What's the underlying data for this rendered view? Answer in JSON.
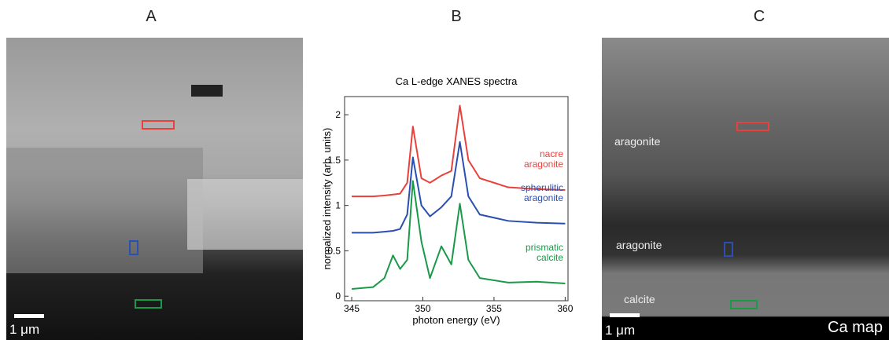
{
  "panels": {
    "a": {
      "label": "A",
      "scale": "1 μm"
    },
    "c": {
      "label": "C",
      "regions": [
        "aragonite",
        "aragonite",
        "calcite"
      ],
      "scale": "1 μm",
      "caption": "Ca map"
    }
  },
  "chart_data": {
    "type": "line",
    "panel": "B",
    "title": "Ca L-edge XANES spectra",
    "x_label": "photon energy (eV)",
    "y_label": "normalized intensity (arb. units)",
    "x": [
      345,
      346.5,
      347.3,
      347.9,
      348.4,
      348.9,
      349.3,
      349.9,
      350.5,
      351.3,
      352,
      352.6,
      353.2,
      354,
      356,
      358,
      360
    ],
    "series": [
      {
        "name": "nacre aragonite",
        "color": "#e8413c",
        "values": [
          1.1,
          1.1,
          1.11,
          1.12,
          1.13,
          1.25,
          1.87,
          1.3,
          1.25,
          1.33,
          1.38,
          2.1,
          1.5,
          1.3,
          1.2,
          1.18,
          1.17
        ]
      },
      {
        "name": "spherulitic aragonite",
        "color": "#2a4fb0",
        "values": [
          0.7,
          0.7,
          0.71,
          0.72,
          0.74,
          0.9,
          1.53,
          1.0,
          0.88,
          0.98,
          1.1,
          1.7,
          1.1,
          0.9,
          0.83,
          0.81,
          0.8
        ]
      },
      {
        "name": "prismatic calcite",
        "color": "#1a9a48",
        "values": [
          0.08,
          0.1,
          0.2,
          0.45,
          0.3,
          0.4,
          1.27,
          0.6,
          0.2,
          0.55,
          0.35,
          1.02,
          0.4,
          0.2,
          0.15,
          0.16,
          0.14
        ]
      }
    ],
    "xlim": [
      344.5,
      360.2
    ],
    "ylim": [
      -0.05,
      2.2
    ],
    "xticks": [
      345,
      350,
      355,
      360
    ],
    "yticks": [
      0,
      0.5,
      1,
      1.5,
      2
    ]
  }
}
